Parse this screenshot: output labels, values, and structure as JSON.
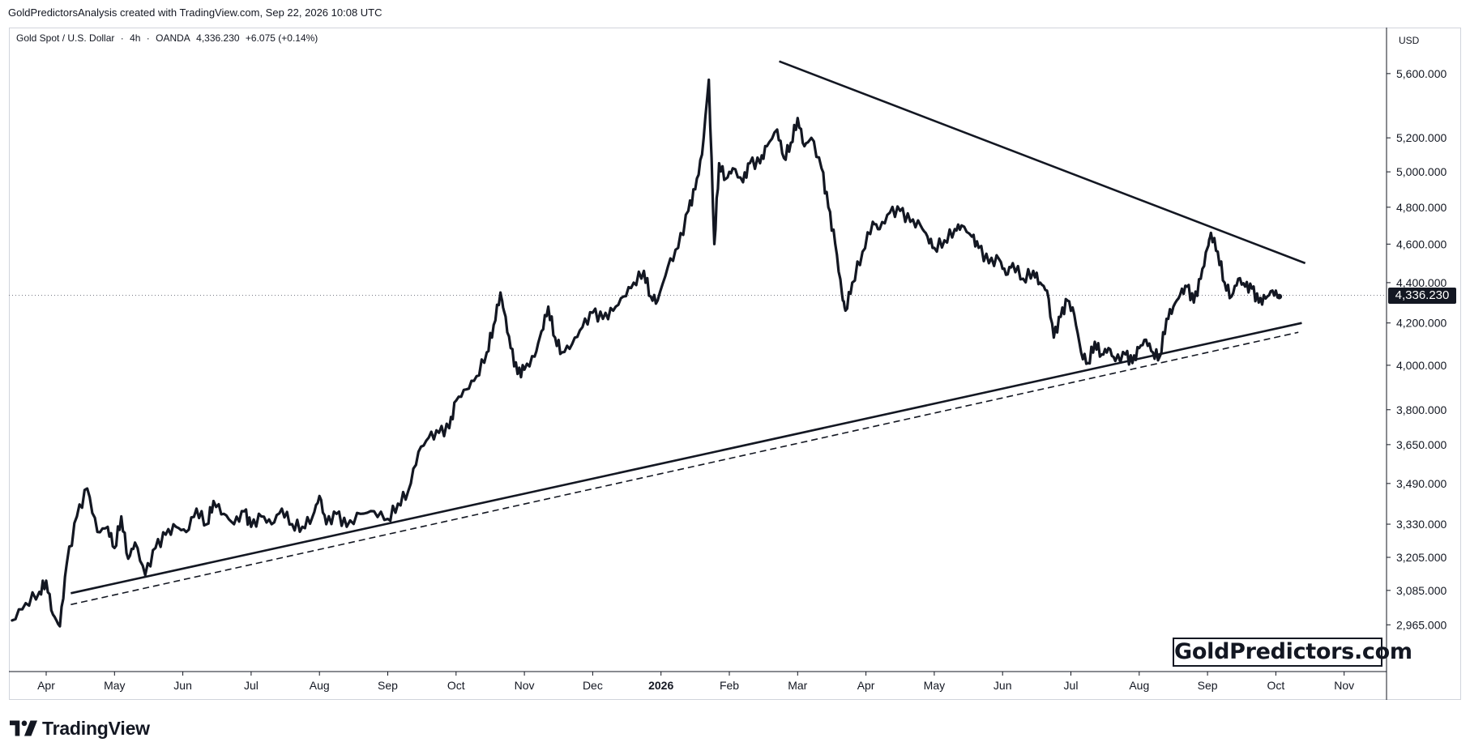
{
  "header": {
    "caption": "GoldPredictorsAnalysis created with TradingView.com, Sep 22, 2026 10:08 UTC"
  },
  "symbol": {
    "name": "Gold Spot / U.S. Dollar",
    "sep1": "·",
    "interval": "4h",
    "sep2": "·",
    "broker": "OANDA",
    "last": "4,336.230",
    "change": "+6.075 (+0.14%)"
  },
  "currency": "USD",
  "last_price_badge": "4,336.230",
  "watermark": "GoldPredictors.com",
  "footer": {
    "brand": "TradingView"
  },
  "colors": {
    "line": "#131722",
    "grid": "#e0e3eb",
    "axis": "#d1d4dc",
    "text": "#131722"
  },
  "chart_data": {
    "type": "line",
    "title": "",
    "xlabel": "",
    "ylabel": "",
    "ylim": [
      2900,
      5780
    ],
    "log_scale": true,
    "grid": false,
    "legend": "none",
    "x_labels": [
      {
        "label": "Apr",
        "t": 0.0
      },
      {
        "label": "May",
        "t": 1.0
      },
      {
        "label": "Jun",
        "t": 2.0
      },
      {
        "label": "Jul",
        "t": 3.0
      },
      {
        "label": "Aug",
        "t": 4.0
      },
      {
        "label": "Sep",
        "t": 5.0
      },
      {
        "label": "Oct",
        "t": 6.0
      },
      {
        "label": "Nov",
        "t": 7.0
      },
      {
        "label": "Dec",
        "t": 8.0
      },
      {
        "label": "2026",
        "t": 9.0,
        "bold": true
      },
      {
        "label": "Feb",
        "t": 10.0
      },
      {
        "label": "Mar",
        "t": 11.0
      },
      {
        "label": "Apr",
        "t": 12.0
      },
      {
        "label": "May",
        "t": 13.0
      },
      {
        "label": "Jun",
        "t": 14.0
      },
      {
        "label": "Jul",
        "t": 15.0
      },
      {
        "label": "Aug",
        "t": 16.0
      },
      {
        "label": "Sep",
        "t": 17.0
      },
      {
        "label": "Oct",
        "t": 18.0
      },
      {
        "label": "Nov",
        "t": 19.0
      }
    ],
    "y_ticks": [
      {
        "label": "5,600.000",
        "v": 5600
      },
      {
        "label": "5,200.000",
        "v": 5200
      },
      {
        "label": "5,000.000",
        "v": 5000
      },
      {
        "label": "4,800.000",
        "v": 4800
      },
      {
        "label": "4,600.000",
        "v": 4600
      },
      {
        "label": "4,400.000",
        "v": 4400
      },
      {
        "label": "4,200.000",
        "v": 4200
      },
      {
        "label": "4,000.000",
        "v": 4000
      },
      {
        "label": "3,800.000",
        "v": 3800
      },
      {
        "label": "3,650.000",
        "v": 3650
      },
      {
        "label": "3,490.000",
        "v": 3490
      },
      {
        "label": "3,330.000",
        "v": 3330
      },
      {
        "label": "3,205.000",
        "v": 3205
      },
      {
        "label": "3,085.000",
        "v": 3085
      },
      {
        "label": "2,965.000",
        "v": 2965
      }
    ],
    "last_price": 4336.23,
    "series": [
      {
        "values": [
          [
            -0.5,
            2980
          ],
          [
            -0.3,
            3040
          ],
          [
            -0.1,
            3080
          ],
          [
            0.0,
            3120
          ],
          [
            0.1,
            3000
          ],
          [
            0.2,
            2960
          ],
          [
            0.3,
            3180
          ],
          [
            0.45,
            3360
          ],
          [
            0.6,
            3470
          ],
          [
            0.75,
            3300
          ],
          [
            0.9,
            3320
          ],
          [
            1.0,
            3240
          ],
          [
            1.1,
            3360
          ],
          [
            1.2,
            3200
          ],
          [
            1.3,
            3260
          ],
          [
            1.45,
            3140
          ],
          [
            1.6,
            3240
          ],
          [
            1.75,
            3290
          ],
          [
            1.9,
            3320
          ],
          [
            2.05,
            3300
          ],
          [
            2.2,
            3390
          ],
          [
            2.35,
            3330
          ],
          [
            2.45,
            3420
          ],
          [
            2.6,
            3370
          ],
          [
            2.75,
            3330
          ],
          [
            2.9,
            3380
          ],
          [
            3.0,
            3320
          ],
          [
            3.15,
            3360
          ],
          [
            3.3,
            3330
          ],
          [
            3.45,
            3390
          ],
          [
            3.6,
            3330
          ],
          [
            3.75,
            3320
          ],
          [
            3.9,
            3360
          ],
          [
            4.0,
            3440
          ],
          [
            4.1,
            3330
          ],
          [
            4.25,
            3370
          ],
          [
            4.4,
            3320
          ],
          [
            4.6,
            3370
          ],
          [
            4.8,
            3380
          ],
          [
            5.0,
            3350
          ],
          [
            5.15,
            3410
          ],
          [
            5.3,
            3460
          ],
          [
            5.45,
            3620
          ],
          [
            5.6,
            3680
          ],
          [
            5.75,
            3700
          ],
          [
            5.9,
            3720
          ],
          [
            6.0,
            3840
          ],
          [
            6.15,
            3890
          ],
          [
            6.3,
            3950
          ],
          [
            6.45,
            4060
          ],
          [
            6.55,
            4190
          ],
          [
            6.65,
            4350
          ],
          [
            6.7,
            4260
          ],
          [
            6.8,
            4080
          ],
          [
            6.9,
            3960
          ],
          [
            7.0,
            3980
          ],
          [
            7.15,
            4040
          ],
          [
            7.25,
            4160
          ],
          [
            7.35,
            4280
          ],
          [
            7.45,
            4130
          ],
          [
            7.55,
            4060
          ],
          [
            7.7,
            4100
          ],
          [
            7.85,
            4180
          ],
          [
            8.0,
            4250
          ],
          [
            8.15,
            4220
          ],
          [
            8.3,
            4260
          ],
          [
            8.45,
            4330
          ],
          [
            8.6,
            4400
          ],
          [
            8.75,
            4460
          ],
          [
            8.85,
            4330
          ],
          [
            8.95,
            4310
          ],
          [
            9.1,
            4480
          ],
          [
            9.25,
            4580
          ],
          [
            9.4,
            4780
          ],
          [
            9.5,
            4900
          ],
          [
            9.6,
            5100
          ],
          [
            9.7,
            5560
          ],
          [
            9.78,
            4600
          ],
          [
            9.85,
            5050
          ],
          [
            9.95,
            4960
          ],
          [
            10.05,
            5020
          ],
          [
            10.2,
            4940
          ],
          [
            10.3,
            5050
          ],
          [
            10.45,
            5050
          ],
          [
            10.55,
            5150
          ],
          [
            10.7,
            5250
          ],
          [
            10.8,
            5080
          ],
          [
            10.9,
            5170
          ],
          [
            11.0,
            5320
          ],
          [
            11.1,
            5150
          ],
          [
            11.2,
            5200
          ],
          [
            11.35,
            5020
          ],
          [
            11.45,
            4800
          ],
          [
            11.55,
            4600
          ],
          [
            11.65,
            4340
          ],
          [
            11.7,
            4260
          ],
          [
            11.8,
            4400
          ],
          [
            11.95,
            4560
          ],
          [
            12.1,
            4720
          ],
          [
            12.2,
            4680
          ],
          [
            12.35,
            4770
          ],
          [
            12.5,
            4780
          ],
          [
            12.65,
            4720
          ],
          [
            12.8,
            4700
          ],
          [
            12.9,
            4640
          ],
          [
            13.0,
            4580
          ],
          [
            13.15,
            4620
          ],
          [
            13.3,
            4680
          ],
          [
            13.4,
            4700
          ],
          [
            13.55,
            4640
          ],
          [
            13.65,
            4580
          ],
          [
            13.8,
            4500
          ],
          [
            13.95,
            4520
          ],
          [
            14.05,
            4440
          ],
          [
            14.15,
            4500
          ],
          [
            14.3,
            4420
          ],
          [
            14.45,
            4460
          ],
          [
            14.55,
            4400
          ],
          [
            14.65,
            4360
          ],
          [
            14.75,
            4130
          ],
          [
            14.85,
            4230
          ],
          [
            14.95,
            4310
          ],
          [
            15.05,
            4240
          ],
          [
            15.15,
            4060
          ],
          [
            15.25,
            4010
          ],
          [
            15.35,
            4110
          ],
          [
            15.45,
            4050
          ],
          [
            15.55,
            4080
          ],
          [
            15.65,
            4020
          ],
          [
            15.8,
            4050
          ],
          [
            15.9,
            4010
          ],
          [
            16.0,
            4080
          ],
          [
            16.1,
            4120
          ],
          [
            16.2,
            4060
          ],
          [
            16.3,
            4040
          ],
          [
            16.4,
            4220
          ],
          [
            16.5,
            4280
          ],
          [
            16.6,
            4340
          ],
          [
            16.7,
            4380
          ],
          [
            16.8,
            4300
          ],
          [
            16.9,
            4420
          ],
          [
            17.0,
            4580
          ],
          [
            17.05,
            4660
          ],
          [
            17.15,
            4560
          ],
          [
            17.25,
            4400
          ],
          [
            17.35,
            4330
          ],
          [
            17.45,
            4420
          ],
          [
            17.55,
            4380
          ],
          [
            17.65,
            4370
          ],
          [
            17.75,
            4300
          ],
          [
            17.85,
            4320
          ],
          [
            17.95,
            4360
          ],
          [
            18.05,
            4330
          ]
        ]
      }
    ],
    "trendlines": [
      {
        "style": "solid",
        "from": [
          10.73,
          5680
        ],
        "to": [
          18.43,
          4500
        ]
      },
      {
        "style": "solid",
        "from": [
          0.36,
          3075
        ],
        "to": [
          18.38,
          4200
        ]
      },
      {
        "style": "dashed",
        "from": [
          0.36,
          3035
        ],
        "to": [
          18.33,
          4155
        ]
      }
    ]
  }
}
